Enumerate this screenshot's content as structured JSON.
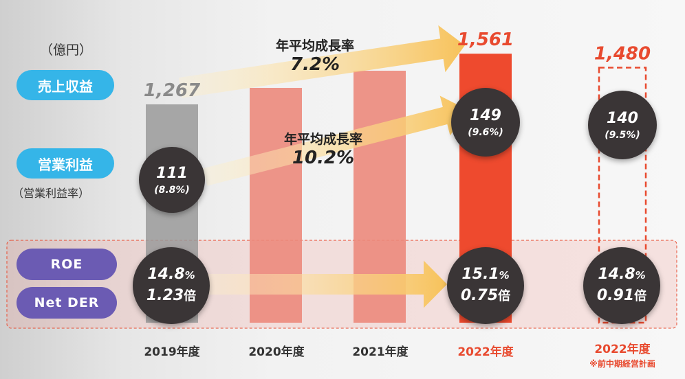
{
  "unit_label": "（億円）",
  "row_labels": {
    "revenue": "売上収益",
    "op_profit": "営業利益",
    "op_margin": "（営業利益率）",
    "roe": "ROE",
    "net_der": "Net DER"
  },
  "growth": {
    "revenue": {
      "label": "年平均成長率",
      "value": "7.2%"
    },
    "op_profit": {
      "label": "年平均成長率",
      "value": "10.2%"
    }
  },
  "categories": [
    "2019年度",
    "2020年度",
    "2021年度",
    "2022年度",
    "2022年度"
  ],
  "plan_note": "※前中期経営計画",
  "colors": {
    "bar_2019": "#9a9a9a",
    "bar_mid": "#ec8a7c",
    "bar_2022": "#ee4a2e",
    "accent_red": "#e84a2f",
    "arrow": "#f7c25a",
    "circle": "#3a3536",
    "pill_blue": "#35b5e8",
    "pill_purple": "#6b5bb3"
  },
  "circles": {
    "op_2019": {
      "value": "111",
      "margin": "(8.8%)"
    },
    "op_2022": {
      "value": "149",
      "margin": "(9.6%)"
    },
    "op_plan": {
      "value": "140",
      "margin": "(9.5%)"
    },
    "roe_2019": {
      "roe": "14.8",
      "der": "1.23"
    },
    "roe_2022": {
      "roe": "15.1",
      "der": "0.75"
    },
    "roe_plan": {
      "roe": "14.8",
      "der": "0.91"
    },
    "pct_sign": "%",
    "bai_sign": "倍"
  },
  "chart_data": {
    "type": "bar",
    "categories": [
      "2019年度",
      "2020年度",
      "2021年度",
      "2022年度",
      "2022年度"
    ],
    "values": [
      1267,
      null,
      null,
      1561,
      1480
    ],
    "value_labels": [
      "1,267",
      "",
      "",
      "1,561",
      "1,480"
    ],
    "series": [
      {
        "values": [
          1267,
          null,
          null,
          1561,
          1480
        ]
      }
    ],
    "operating_profit": [
      111,
      null,
      null,
      149,
      140
    ],
    "operating_margin_pct": [
      8.8,
      null,
      null,
      9.6,
      9.5
    ],
    "roe_pct": [
      14.8,
      null,
      null,
      15.1,
      14.8
    ],
    "net_der_times": [
      1.23,
      null,
      null,
      0.75,
      0.91
    ],
    "cagr_revenue_pct": 7.2,
    "cagr_op_profit_pct": 10.2,
    "unit": "億円",
    "ylim": [
      0,
      1650
    ],
    "grid": false,
    "plan_index": 4
  }
}
